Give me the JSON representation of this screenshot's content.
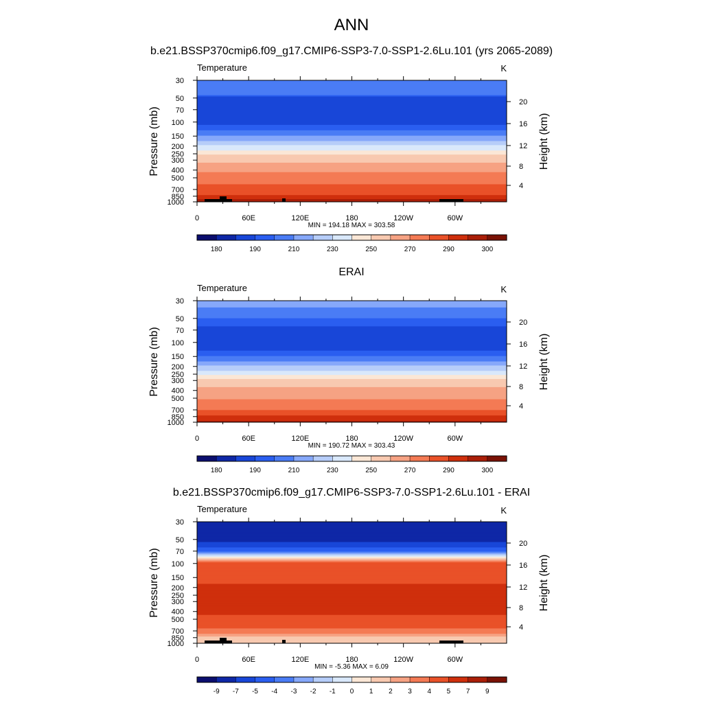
{
  "figure_title": "ANN",
  "colors": {
    "abs_palette": [
      "#0b0e6e",
      "#0e27a6",
      "#1846d8",
      "#2a5ef0",
      "#4a7cf5",
      "#86a8fa",
      "#b6cdf9",
      "#d9e8fb",
      "#fbe7d6",
      "#f8c9b0",
      "#f6a283",
      "#f47a54",
      "#e95128",
      "#cf2f0c",
      "#aa1e08",
      "#7a1205"
    ],
    "diff_palette": [
      "#0b0e6e",
      "#0e27a6",
      "#1846d8",
      "#2a5ef0",
      "#4a7cf5",
      "#86a8fa",
      "#b6cdf9",
      "#d9e8fb",
      "#fbe7d6",
      "#f8c9b0",
      "#f6a283",
      "#f47a54",
      "#e95128",
      "#cf2f0c",
      "#aa1e08",
      "#7a1205"
    ]
  },
  "chart_data": [
    {
      "type": "heatmap",
      "title": "b.e21.BSSP370cmip6.f09_g17.CMIP6-SSP3-7.0-SSP1-2.6Lu.101 (yrs 2065-2089)",
      "left_label": "Temperature",
      "right_label": "K",
      "ylabel": "Pressure (mb)",
      "ylabel_right": "Height (km)",
      "x_ticks": [
        "0",
        "60E",
        "120E",
        "180",
        "120W",
        "60W"
      ],
      "y_ticks": [
        "30",
        "50",
        "70",
        "100",
        "150",
        "200",
        "250",
        "300",
        "400",
        "500",
        "700",
        "850",
        "1000"
      ],
      "y_ticks_right": [
        "20",
        "16",
        "12",
        "8",
        "4"
      ],
      "stats": "MIN = 194.18  MAX = 303.58",
      "colorbar_labels": [
        "180",
        "190",
        "210",
        "230",
        "250",
        "270",
        "290",
        "300"
      ],
      "palette": "abs",
      "profile": [
        [
          30,
          4
        ],
        [
          45,
          4
        ],
        [
          50,
          2
        ],
        [
          70,
          2
        ],
        [
          85,
          2
        ],
        [
          100,
          2
        ],
        [
          115,
          3
        ],
        [
          140,
          4
        ],
        [
          160,
          5
        ],
        [
          185,
          6
        ],
        [
          210,
          7
        ],
        [
          240,
          8
        ],
        [
          270,
          9
        ],
        [
          300,
          9
        ],
        [
          340,
          10
        ],
        [
          400,
          10
        ],
        [
          460,
          11
        ],
        [
          560,
          11
        ],
        [
          640,
          12
        ],
        [
          760,
          12
        ],
        [
          860,
          13
        ],
        [
          960,
          14
        ],
        [
          1000,
          14
        ]
      ],
      "topography": true
    },
    {
      "type": "heatmap",
      "title": "ERAI",
      "left_label": "Temperature",
      "right_label": "K",
      "ylabel": "Pressure (mb)",
      "ylabel_right": "Height (km)",
      "x_ticks": [
        "0",
        "60E",
        "120E",
        "180",
        "120W",
        "60W"
      ],
      "y_ticks": [
        "30",
        "50",
        "70",
        "100",
        "150",
        "200",
        "250",
        "300",
        "400",
        "500",
        "700",
        "850",
        "1000"
      ],
      "y_ticks_right": [
        "20",
        "16",
        "12",
        "8",
        "4"
      ],
      "stats": "MIN = 190.72  MAX = 303.43",
      "colorbar_labels": [
        "180",
        "190",
        "210",
        "230",
        "250",
        "270",
        "290",
        "300"
      ],
      "palette": "abs",
      "profile": [
        [
          30,
          5
        ],
        [
          45,
          4
        ],
        [
          55,
          3
        ],
        [
          70,
          2
        ],
        [
          85,
          2
        ],
        [
          100,
          2
        ],
        [
          115,
          2
        ],
        [
          140,
          3
        ],
        [
          160,
          4
        ],
        [
          185,
          5
        ],
        [
          210,
          6
        ],
        [
          240,
          7
        ],
        [
          270,
          8
        ],
        [
          300,
          9
        ],
        [
          340,
          9
        ],
        [
          400,
          10
        ],
        [
          460,
          10
        ],
        [
          560,
          11
        ],
        [
          640,
          11
        ],
        [
          760,
          12
        ],
        [
          860,
          13
        ],
        [
          960,
          13
        ],
        [
          1000,
          14
        ]
      ],
      "topography": false
    },
    {
      "type": "heatmap",
      "title": "b.e21.BSSP370cmip6.f09_g17.CMIP6-SSP3-7.0-SSP1-2.6Lu.101 - ERAI",
      "left_label": "Temperature",
      "right_label": "K",
      "ylabel": "Pressure (mb)",
      "ylabel_right": "Height (km)",
      "x_ticks": [
        "0",
        "60E",
        "120E",
        "180",
        "120W",
        "60W"
      ],
      "y_ticks": [
        "30",
        "50",
        "70",
        "100",
        "150",
        "200",
        "250",
        "300",
        "400",
        "500",
        "700",
        "850",
        "1000"
      ],
      "y_ticks_right": [
        "20",
        "16",
        "12",
        "8",
        "4"
      ],
      "stats": "MIN =  -5.36  MAX =   6.09",
      "colorbar_labels": [
        "-9",
        "-7",
        "-5",
        "-4",
        "-3",
        "-2",
        "-1",
        "0",
        "1",
        "2",
        "3",
        "4",
        "5",
        "7",
        "9"
      ],
      "palette": "diff",
      "profile": [
        [
          30,
          1
        ],
        [
          50,
          1
        ],
        [
          60,
          2
        ],
        [
          68,
          3
        ],
        [
          74,
          5
        ],
        [
          78,
          6
        ],
        [
          82,
          7
        ],
        [
          86,
          8
        ],
        [
          92,
          10
        ],
        [
          100,
          12
        ],
        [
          160,
          12
        ],
        [
          200,
          13
        ],
        [
          400,
          13
        ],
        [
          480,
          12
        ],
        [
          600,
          12
        ],
        [
          700,
          11
        ],
        [
          800,
          10
        ],
        [
          880,
          9
        ],
        [
          950,
          9
        ],
        [
          1000,
          9
        ]
      ],
      "topography": true
    }
  ]
}
